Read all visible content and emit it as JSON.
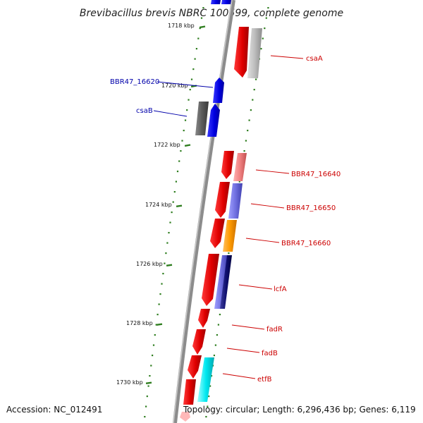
{
  "title": "Brevibacillus brevis NBRC 100599, complete genome",
  "footer": {
    "accession": "Accession: NC_012491",
    "topology": "Topology: circular; Length: 6,296,436 bp; Genes: 6,119"
  },
  "ruler": {
    "ticks": [
      {
        "kbp": 1718,
        "label": "1718 kbp"
      },
      {
        "kbp": 1720,
        "label": "1720 kbp"
      },
      {
        "kbp": 1722,
        "label": "1722 kbp"
      },
      {
        "kbp": 1724,
        "label": "1724 kbp"
      },
      {
        "kbp": 1726,
        "label": "1726 kbp"
      },
      {
        "kbp": 1728,
        "label": "1728 kbp"
      },
      {
        "kbp": 1730,
        "label": "1730 kbp"
      }
    ]
  },
  "colors": {
    "backbone": "#8c8c8c",
    "tick": "#2e7d1e",
    "forward_label": "#cc0000",
    "reverse_label": "#0000aa"
  },
  "genes": [
    {
      "label": "csaA",
      "strand": "forward"
    },
    {
      "label": "BBR47_16620",
      "strand": "reverse"
    },
    {
      "label": "csaB",
      "strand": "reverse"
    },
    {
      "label": "BBR47_16640",
      "strand": "forward"
    },
    {
      "label": "BBR47_16650",
      "strand": "forward"
    },
    {
      "label": "BBR47_16660",
      "strand": "forward"
    },
    {
      "label": "lcfA",
      "strand": "forward"
    },
    {
      "label": "fadR",
      "strand": "forward"
    },
    {
      "label": "fadB",
      "strand": "forward"
    },
    {
      "label": "etfB",
      "strand": "forward"
    }
  ]
}
